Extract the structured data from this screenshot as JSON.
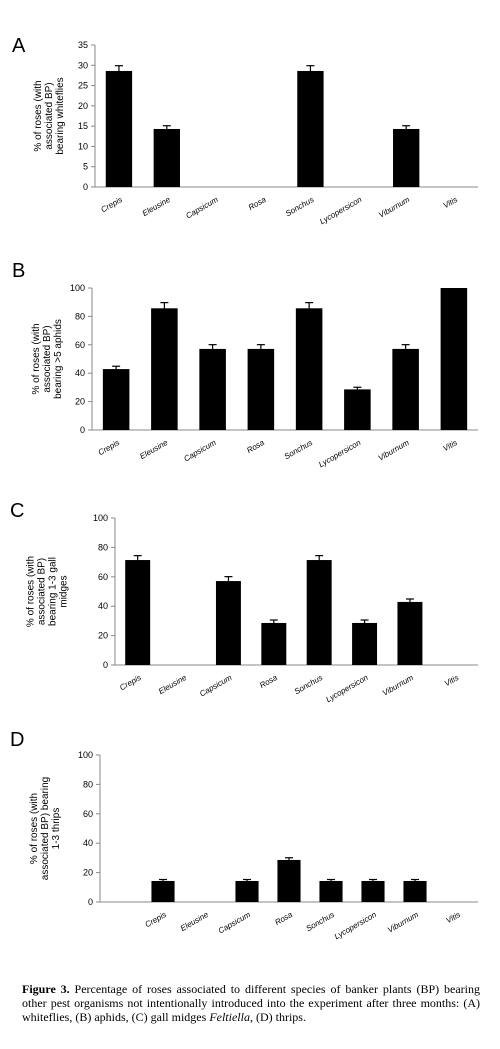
{
  "chart_data": [
    {
      "type": "bar",
      "panel": "A",
      "ylabel": [
        "% of roses (with",
        "associated BP)",
        "bearing whiteflies"
      ],
      "categories": [
        "Crepis",
        "Eleusine",
        "Capsicum",
        "Rosa",
        "Sonchus",
        "Lycopersicon",
        "Viburnum",
        "Vitis"
      ],
      "values": [
        28.6,
        14.3,
        0,
        0,
        28.6,
        0,
        14.3,
        0
      ],
      "errors": [
        1.3,
        0.8,
        null,
        null,
        1.3,
        null,
        0.8,
        null
      ],
      "color": "#000000",
      "ylim": [
        0,
        35
      ],
      "yticks": [
        0,
        5,
        10,
        15,
        20,
        25,
        30,
        35
      ]
    },
    {
      "type": "bar",
      "panel": "B",
      "ylabel": [
        "% of roses  (with",
        "associated BP)",
        "bearing >5 aphids"
      ],
      "categories": [
        "Crepis",
        "Eleusine",
        "Capsicum",
        "Rosa",
        "Sonchus",
        "Lycopersicon",
        "Viburnum",
        "Vitis"
      ],
      "values": [
        42.9,
        85.7,
        57.1,
        57.1,
        85.7,
        28.6,
        57.1,
        100
      ],
      "errors": [
        2,
        4,
        3,
        3,
        4,
        1.5,
        3,
        null
      ],
      "color": "#000000",
      "ylim": [
        0,
        100
      ],
      "yticks": [
        0,
        20,
        40,
        60,
        80,
        100
      ]
    },
    {
      "type": "bar",
      "panel": "C",
      "ylabel": [
        "% of roses (with",
        "associated BP)",
        "bearing 1-3 gall",
        "midges"
      ],
      "categories": [
        "Crepis",
        "Eleusine",
        "Capsicum",
        "Rosa",
        "Sonchus",
        "Lycopersicon",
        "Viburnum",
        "Vitis"
      ],
      "values": [
        71.4,
        0,
        57.1,
        28.6,
        71.4,
        28.6,
        42.9,
        0
      ],
      "errors": [
        3,
        null,
        3,
        2,
        3,
        2,
        2,
        null
      ],
      "color": "#000000",
      "ylim": [
        0,
        100
      ],
      "yticks": [
        0,
        20,
        40,
        60,
        80,
        100
      ]
    },
    {
      "type": "bar",
      "panel": "D",
      "ylabel": [
        "% of roses (with",
        "associated BP) bearing",
        "1-3 thrips"
      ],
      "categories": [
        null,
        "Crepis",
        "Eleusine",
        "Capsicum",
        "Rosa",
        "Sonchus",
        "Lycopersicon",
        "Viburnum",
        "Vitis"
      ],
      "values": [
        null,
        14.3,
        0,
        14.3,
        28.6,
        14.3,
        14.3,
        14.3,
        0
      ],
      "errors": [
        null,
        1,
        null,
        1,
        1.5,
        1,
        1,
        1,
        null
      ],
      "color": "#000000",
      "ylim": [
        0,
        100
      ],
      "yticks": [
        0,
        20,
        40,
        60,
        80,
        100
      ]
    }
  ],
  "caption": {
    "label": "Figure 3.",
    "text": " Percentage of roses associated to different species of banker plants  (BP) bearing other pest organisms not intentionally introduced into the experiment after three months: (A) whiteflies, (B) aphids, (C) gall midges ",
    "italic": "Feltiella",
    "end": ", (D) thrips."
  }
}
